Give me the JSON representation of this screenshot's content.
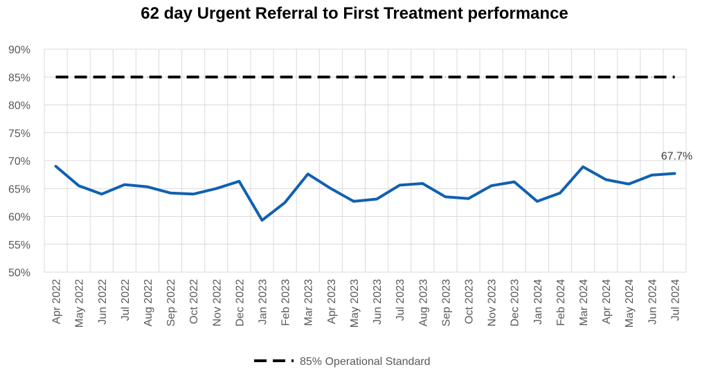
{
  "chart_data": {
    "type": "line",
    "title": "62 day Urgent Referral to First Treatment performance",
    "xlabel": "",
    "ylabel": "",
    "ylim": [
      50,
      90
    ],
    "y_ticks": [
      "50%",
      "55%",
      "60%",
      "65%",
      "70%",
      "75%",
      "80%",
      "85%",
      "90%"
    ],
    "categories": [
      "Apr 2022",
      "May 2022",
      "Jun 2022",
      "Jul 2022",
      "Aug 2022",
      "Sep 2022",
      "Oct 2022",
      "Nov 2022",
      "Dec 2022",
      "Jan 2023",
      "Feb 2023",
      "Mar 2023",
      "Apr 2023",
      "May 2023",
      "Jun 2023",
      "Jul 2023",
      "Aug 2023",
      "Sep 2023",
      "Oct 2023",
      "Nov 2023",
      "Dec 2023",
      "Jan 2024",
      "Feb 2024",
      "Mar 2024",
      "Apr 2024",
      "May 2024",
      "Jun 2024",
      "Jul 2024"
    ],
    "grid": true,
    "legend_position": "bottom",
    "series": [
      {
        "name": "",
        "color": "#1060b0",
        "values": [
          69.0,
          65.5,
          64.0,
          65.7,
          65.3,
          64.2,
          64.0,
          65.0,
          66.3,
          59.3,
          62.5,
          67.6,
          65.0,
          62.7,
          63.1,
          65.6,
          65.9,
          63.5,
          63.2,
          65.5,
          66.2,
          62.7,
          64.2,
          68.9,
          66.6,
          65.8,
          67.4,
          67.7
        ]
      },
      {
        "name": "85% Operational Standard",
        "color": "#000000",
        "dashed": true,
        "values": [
          85,
          85,
          85,
          85,
          85,
          85,
          85,
          85,
          85,
          85,
          85,
          85,
          85,
          85,
          85,
          85,
          85,
          85,
          85,
          85,
          85,
          85,
          85,
          85,
          85,
          85,
          85,
          85
        ]
      }
    ],
    "data_labels": [
      {
        "series": 0,
        "index": 27,
        "text": "67.7%"
      }
    ]
  }
}
